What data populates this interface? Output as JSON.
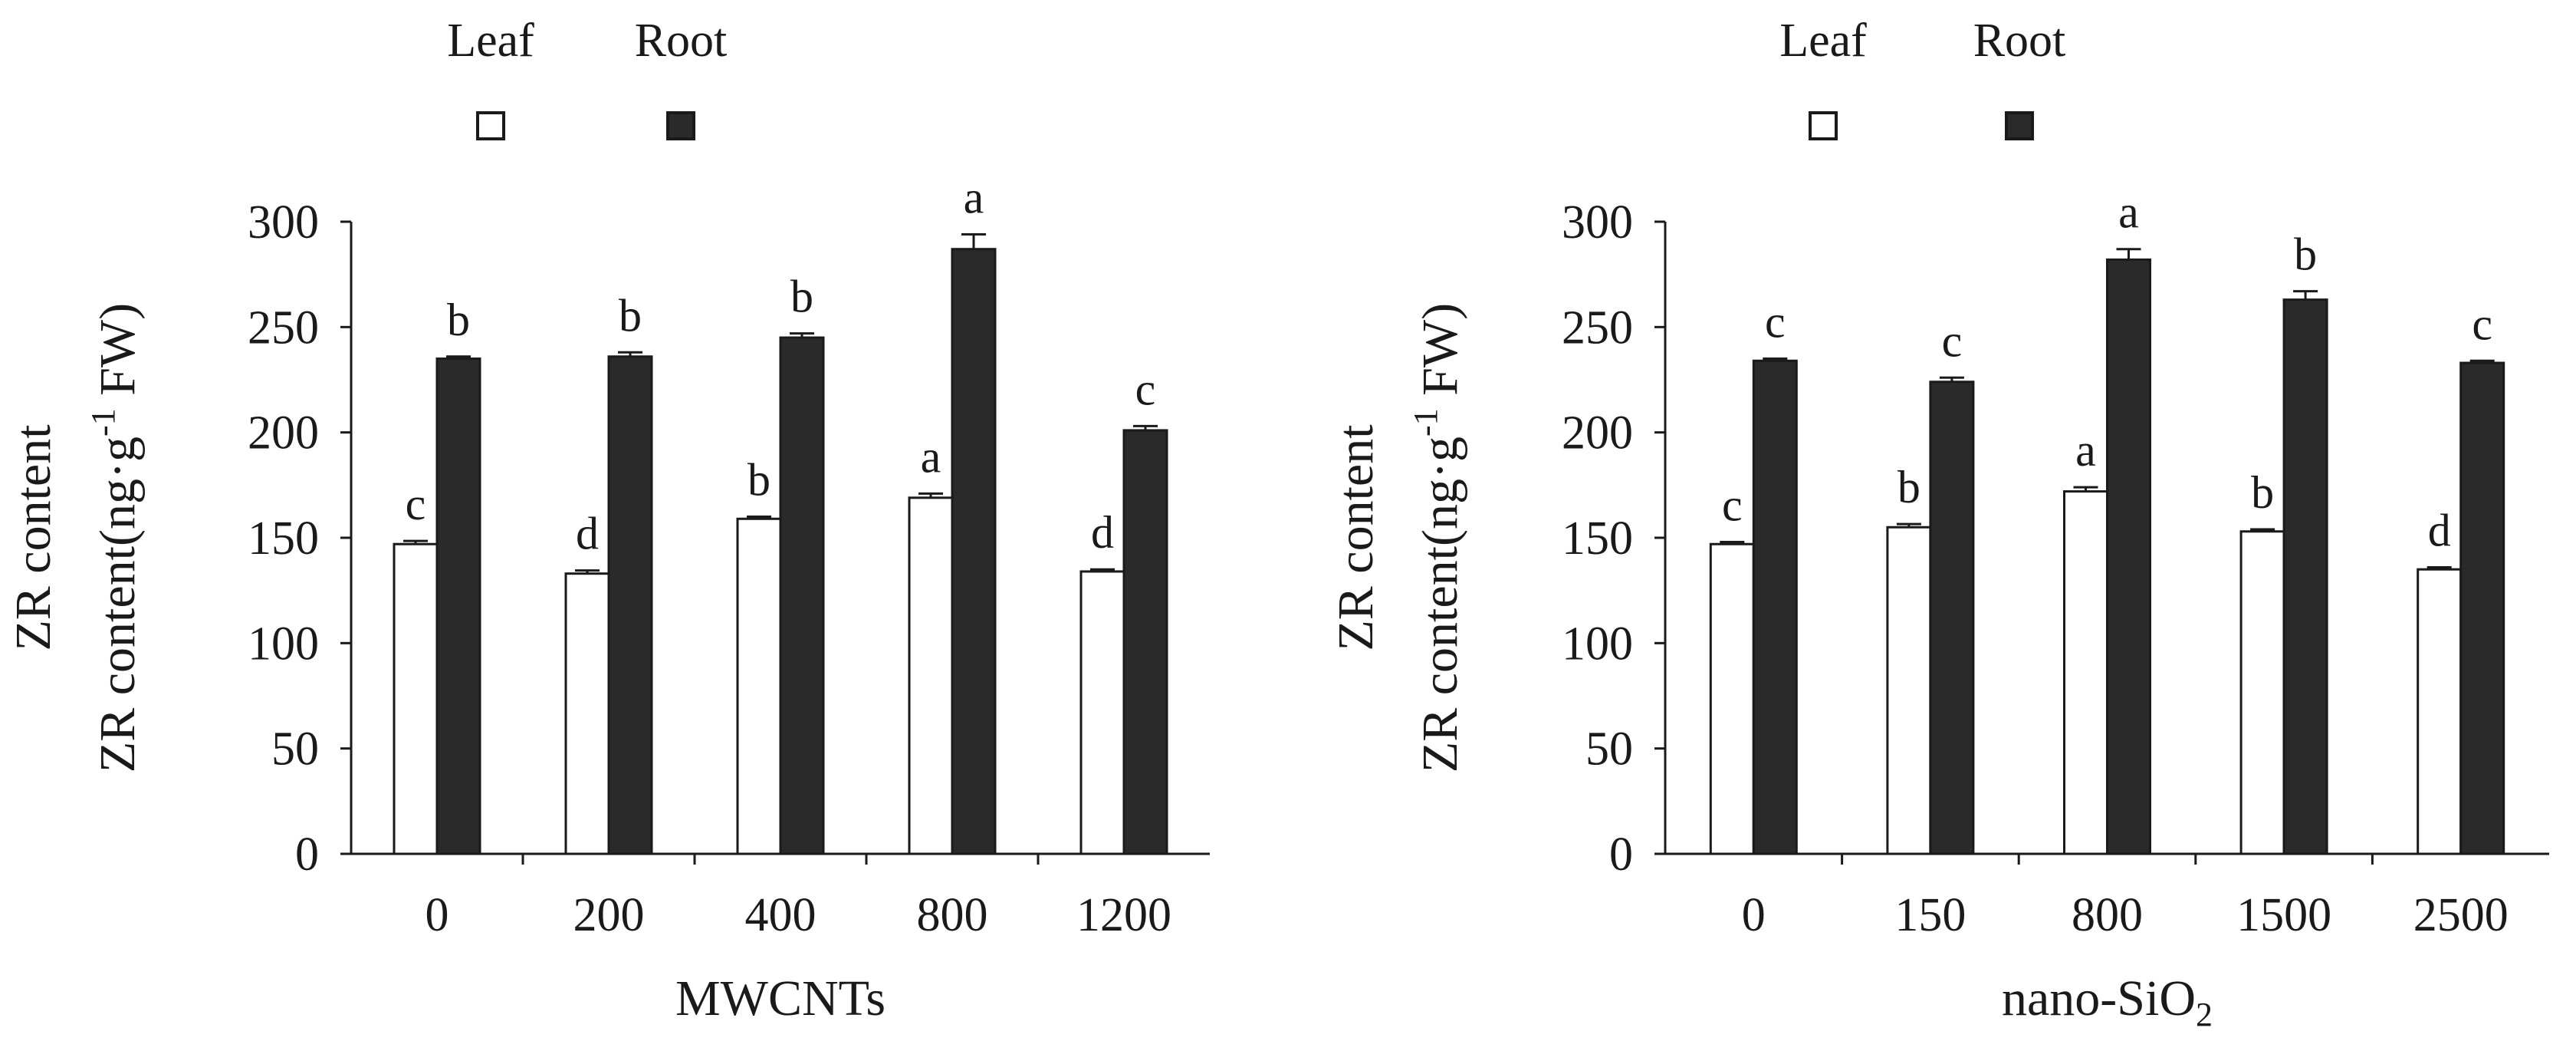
{
  "chart_data": [
    {
      "type": "bar",
      "xlabel": "MWCNTs",
      "ylabel_line1": "ZR content",
      "ylabel_line2_pre": "ZR content(ng·g",
      "ylabel_line2_sup": "-1",
      "ylabel_line2_post": " FW)",
      "ylim": [
        0,
        300
      ],
      "yticks": [
        0,
        50,
        100,
        150,
        200,
        250,
        300
      ],
      "categories": [
        "0",
        "200",
        "400",
        "800",
        "1200"
      ],
      "legend": [
        "Leaf",
        "Root"
      ],
      "legend_position": "top",
      "series": [
        {
          "name": "Leaf",
          "color": "#ffffff",
          "values": [
            147,
            133,
            159,
            169,
            134
          ],
          "errors": [
            1.5,
            1.5,
            1.0,
            2.0,
            1.0
          ],
          "letters": [
            "c",
            "d",
            "b",
            "a",
            "d"
          ]
        },
        {
          "name": "Root",
          "color": "#2a2a2a",
          "values": [
            235,
            236,
            245,
            287,
            201
          ],
          "errors": [
            1.0,
            2.0,
            2.0,
            7.0,
            2.0
          ],
          "letters": [
            "b",
            "b",
            "b",
            "a",
            "c"
          ]
        }
      ]
    },
    {
      "type": "bar",
      "xlabel_pre": "nano-SiO",
      "xlabel_sub": "2",
      "ylabel_line1": "ZR content",
      "ylabel_line2_pre": "ZR content(ng·g",
      "ylabel_line2_sup": "-1",
      "ylabel_line2_post": " FW)",
      "ylim": [
        0,
        300
      ],
      "yticks": [
        0,
        50,
        100,
        150,
        200,
        250,
        300
      ],
      "categories": [
        "0",
        "150",
        "800",
        "1500",
        "2500"
      ],
      "legend": [
        "Leaf",
        "Root"
      ],
      "legend_position": "top",
      "series": [
        {
          "name": "Leaf",
          "color": "#ffffff",
          "values": [
            147,
            155,
            172,
            153,
            135
          ],
          "errors": [
            1.0,
            1.5,
            2.0,
            1.0,
            1.0
          ],
          "letters": [
            "c",
            "b",
            "a",
            "b",
            "d"
          ]
        },
        {
          "name": "Root",
          "color": "#2a2a2a",
          "values": [
            234,
            224,
            282,
            263,
            233
          ],
          "errors": [
            1.0,
            2.0,
            5.0,
            4.0,
            1.0
          ],
          "letters": [
            "c",
            "c",
            "a",
            "b",
            "c"
          ]
        }
      ]
    }
  ]
}
